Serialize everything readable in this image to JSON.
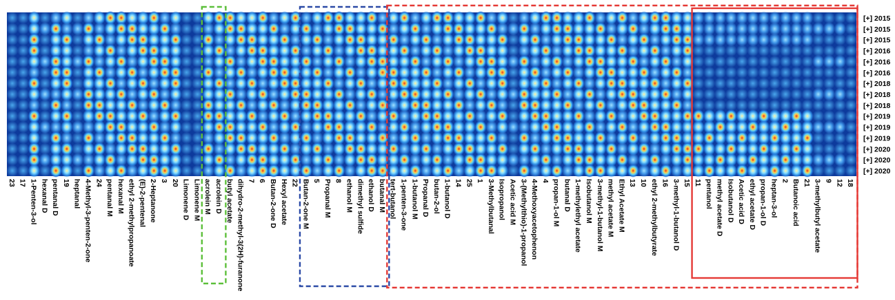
{
  "chart_data": {
    "type": "heatmap",
    "title": "",
    "colors": {
      "background": "#0d3a9c",
      "low": "#1550c8",
      "mid": "#42b4f0",
      "high": "#ffd24a",
      "peak": "#e8351c",
      "box_green": "#5cbf3a",
      "box_blue": "#2b4aa6",
      "box_red": "#e53935"
    },
    "rows": [
      "[+] 2015",
      "[+] 2015",
      "[+] 2015",
      "[+] 2016",
      "[+] 2016",
      "[+] 2016",
      "[+] 2018",
      "[+] 2018",
      "[+] 2018",
      "[+] 2019",
      "[+] 2019",
      "[+] 2019",
      "[+] 2020",
      "[+] 2020",
      "[+] 2020"
    ],
    "columns": [
      "23",
      "17",
      "1-Penten-3-ol",
      "hexanal D",
      "pentanal D",
      "19",
      "heptanal",
      "4-Methyl-3-penten-2-one",
      "24",
      "pentanal M",
      "hexanal M",
      "ethyl 2-methylpropanoate",
      "(E)-2-pentenal",
      "2-Heptanone",
      "3",
      "20",
      "Limonene D",
      "Limonene M",
      "acrolein M",
      "acrolein D",
      "butyl acetate",
      "dihydro-2-methyl-3(2H)-furanone",
      "7",
      "6",
      "Butan-2-one D",
      "Hexyl acetate",
      "22",
      "Butan-2-one M",
      "5",
      "Propanal M",
      "8",
      "ethanol M",
      "dimethyl sulfide",
      "ethanol D",
      "butanal M",
      "tert-butanol",
      "1-penten-3-one",
      "1-butanol M",
      "Propanal D",
      "butan-2-ol",
      "1-butanol D",
      "14",
      "25",
      "1",
      "3-Methylbutanal",
      "Isopropanol",
      "Acetic acid M",
      "3-(Methylthio)-1-propanol",
      "4-Methoxyacetophenon",
      "4",
      "propan-1-ol M",
      "butanal D",
      "1-methylethyl acetate",
      "Isobutanol M",
      "3-methyl-1-butanol M",
      "methyl acetate M",
      "Ethyl Acetate M",
      "13",
      "10",
      "ethyl 2-methylbutyrate",
      "16",
      "3-methyl-1-butanol D",
      "15",
      "11",
      "pentanol",
      "methyl acetate D",
      "Isobutanol D",
      "Acetic acid D",
      "ethyl acetate D",
      "propan-1-ol D",
      "heptan-3-ol",
      "2",
      "Butanoic acid",
      "21",
      "3-methylbutyl acetate",
      "9",
      "12",
      "18"
    ],
    "highlight_boxes": [
      {
        "color": "green",
        "style": "dashed",
        "columns": [
          "acrolein M",
          "acrolein D"
        ]
      },
      {
        "color": "blue",
        "style": "dashed",
        "columns": [
          "Butan-2-one M",
          "5",
          "Propanal M",
          "8",
          "ethanol M",
          "dimethyl sulfide",
          "ethanol D",
          "butanal M"
        ]
      },
      {
        "color": "red",
        "style": "dashed",
        "columns_from": "tert-butanol",
        "columns_to": "18"
      },
      {
        "color": "red",
        "style": "solid",
        "columns_from": "11",
        "columns_to": "18"
      }
    ]
  }
}
